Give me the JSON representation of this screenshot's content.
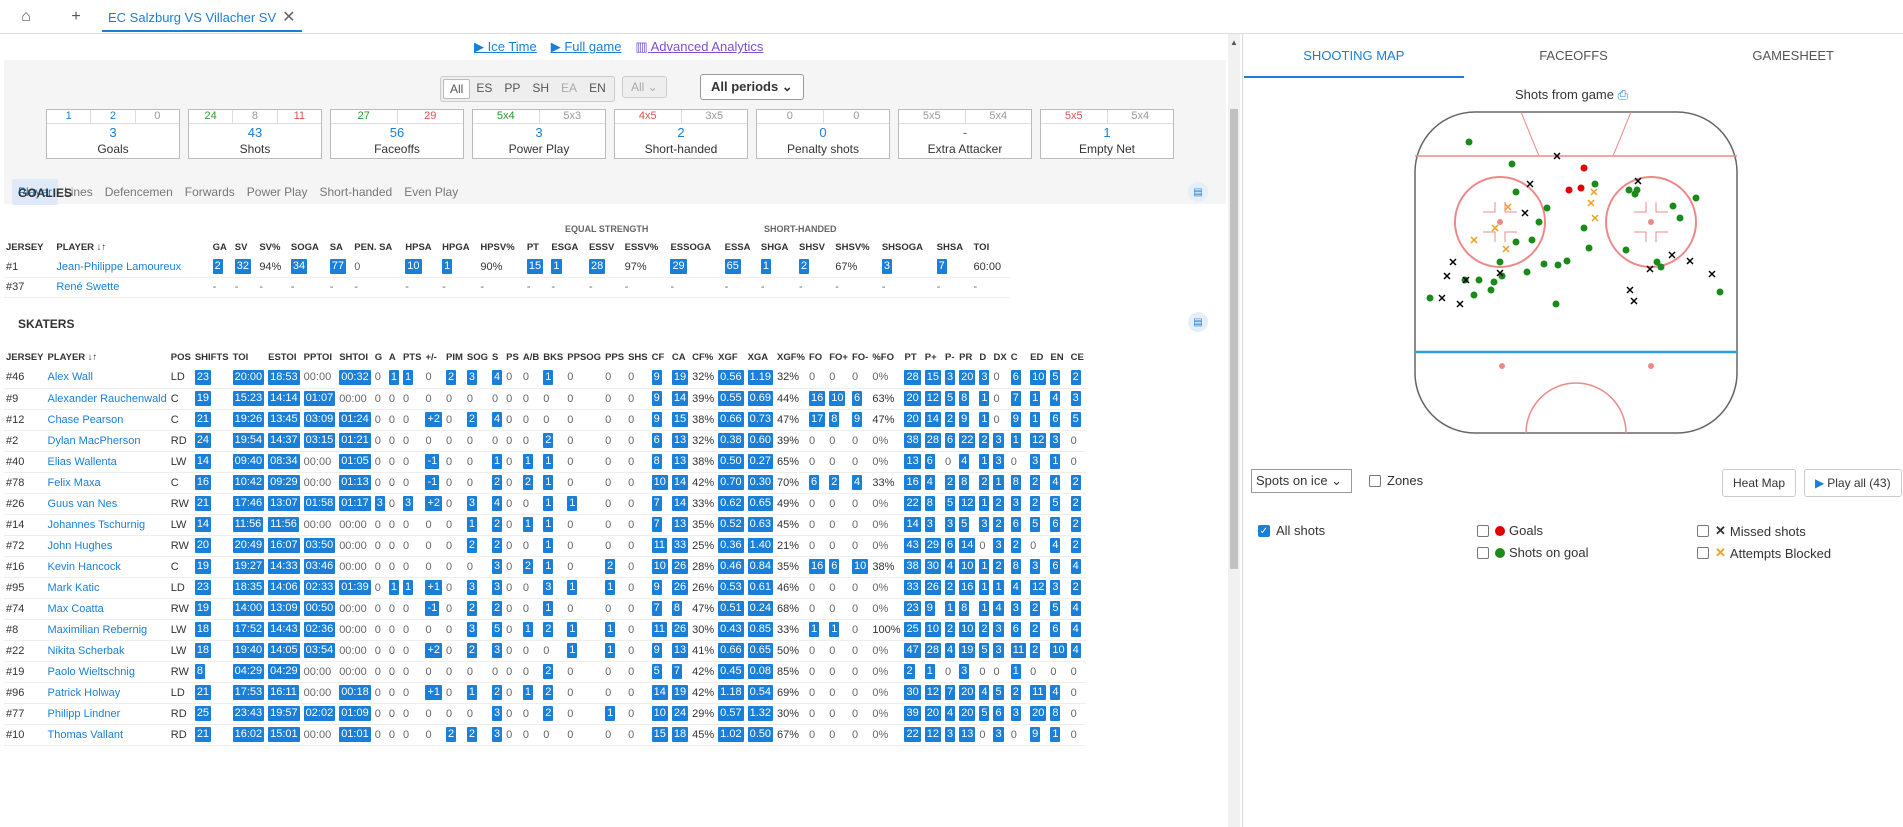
{
  "tabbar": {
    "home_icon": "home-icon",
    "add_icon": "plus-icon",
    "tab_title": "EC Salzburg VS Villacher SV",
    "close": "✕"
  },
  "links": {
    "ice_time": "Ice Time",
    "full_game": "Full game",
    "analytics": "Advanced Analytics"
  },
  "filters": {
    "situations": [
      "All",
      "ES",
      "PP",
      "SH",
      "EA",
      "EN"
    ],
    "all_select": "All",
    "periods": "All periods"
  },
  "stat_boxes": [
    {
      "top": [
        "1",
        "2",
        "0"
      ],
      "top_colors": [
        "blue",
        "blue",
        "gry"
      ],
      "value": "3",
      "label": "Goals"
    },
    {
      "top": [
        "24",
        "8",
        "11"
      ],
      "top_colors": [
        "green",
        "gry",
        "red"
      ],
      "value": "43",
      "label": "Shots"
    },
    {
      "top": [
        "27",
        "29"
      ],
      "top_colors": [
        "green",
        "red"
      ],
      "value": "56",
      "label": "Faceoffs"
    },
    {
      "top": [
        "5x4",
        "5x3"
      ],
      "top_colors": [
        "green",
        "gry"
      ],
      "value": "3",
      "label": "Power Play"
    },
    {
      "top": [
        "4x5",
        "3x5"
      ],
      "top_colors": [
        "red",
        "gry"
      ],
      "value": "2",
      "label": "Short-handed"
    },
    {
      "top": [
        "0",
        "0"
      ],
      "top_colors": [
        "gry",
        "gry"
      ],
      "value": "0",
      "label": "Penalty shots"
    },
    {
      "top": [
        "5x5",
        "5x4"
      ],
      "top_colors": [
        "gry",
        "gry"
      ],
      "value": "-",
      "label": "Extra Attacker"
    },
    {
      "top": [
        "5x5",
        "5x4"
      ],
      "top_colors": [
        "red",
        "gry"
      ],
      "value": "1",
      "label": "Empty Net"
    }
  ],
  "subtabs": [
    "Player",
    "Lines",
    "Defencemen",
    "Forwards",
    "Power Play",
    "Short-handed",
    "Even Play"
  ],
  "goalies": {
    "title": "GOALIES",
    "eq_label": "EQUAL STRENGTH",
    "sh_label": "SHORT-HANDED",
    "headers": [
      "JERSEY",
      "PLAYER ↓↑",
      "GA",
      "SV",
      "SV%",
      "SOGA",
      "SA",
      "PEN. SA",
      "HPSA",
      "HPGA",
      "HPSV%",
      "PT",
      "ESGA",
      "ESSV",
      "ESSV%",
      "ESSOGA",
      "ESSA",
      "SHGA",
      "SHSV",
      "SHSV%",
      "SHSOGA",
      "SHSA",
      "TOI"
    ],
    "rows": [
      [
        "#1",
        "Jean-Philippe Lamoureux",
        "2",
        "32",
        "94%",
        "34",
        "77",
        "0",
        "10",
        "1",
        "90%",
        "15",
        "1",
        "28",
        "97%",
        "29",
        "65",
        "1",
        "2",
        "67%",
        "3",
        "7",
        "60:00"
      ],
      [
        "#37",
        "René Swette",
        "-",
        "-",
        "-",
        "-",
        "-",
        "-",
        "-",
        "-",
        "-",
        "-",
        "-",
        "-",
        "-",
        "-",
        "-",
        "-",
        "-",
        "-",
        "-",
        "-",
        "-"
      ]
    ]
  },
  "skaters": {
    "title": "SKATERS",
    "headers": [
      "JERSEY",
      "PLAYER ↓↑",
      "POS",
      "SHIFTS",
      "TOI",
      "ESTOI",
      "PPTOI",
      "SHTOI",
      "G",
      "A",
      "PTS",
      "+/-",
      "PIM",
      "SOG",
      "S",
      "PS",
      "A/B",
      "BKS",
      "PPSOG",
      "PPS",
      "SHS",
      "CF",
      "CA",
      "CF%",
      "XGF",
      "XGA",
      "XGF%",
      "FO",
      "FO+",
      "FO-",
      "%FO",
      "PT",
      "P+",
      "P-",
      "PR",
      "D",
      "DX",
      "C",
      "ED",
      "EN",
      "CE"
    ],
    "rows": [
      [
        "#46",
        "Alex Wall",
        "LD",
        "23",
        "20:00",
        "18:53",
        "00:00",
        "00:32",
        "0",
        "1",
        "1",
        "0",
        "2",
        "3",
        "4",
        "0",
        "0",
        "1",
        "0",
        "0",
        "0",
        "9",
        "19",
        "32%",
        "0.56",
        "1.19",
        "32%",
        "0",
        "0",
        "0",
        "0%",
        "28",
        "15",
        "3",
        "20",
        "3",
        "0",
        "6",
        "10",
        "5",
        "2"
      ],
      [
        "#9",
        "Alexander Rauchenwald",
        "C",
        "19",
        "15:23",
        "14:14",
        "01:07",
        "00:00",
        "0",
        "0",
        "0",
        "0",
        "0",
        "0",
        "0",
        "0",
        "0",
        "0",
        "0",
        "0",
        "0",
        "9",
        "14",
        "39%",
        "0.55",
        "0.69",
        "44%",
        "16",
        "10",
        "6",
        "63%",
        "20",
        "12",
        "5",
        "8",
        "1",
        "0",
        "7",
        "1",
        "4",
        "3"
      ],
      [
        "#12",
        "Chase Pearson",
        "C",
        "21",
        "19:26",
        "13:45",
        "03:09",
        "01:24",
        "0",
        "0",
        "0",
        "+2",
        "0",
        "2",
        "4",
        "0",
        "0",
        "0",
        "0",
        "0",
        "0",
        "9",
        "15",
        "38%",
        "0.66",
        "0.73",
        "47%",
        "17",
        "8",
        "9",
        "47%",
        "20",
        "14",
        "2",
        "9",
        "1",
        "0",
        "9",
        "1",
        "6",
        "5"
      ],
      [
        "#2",
        "Dylan MacPherson",
        "RD",
        "24",
        "19:54",
        "14:37",
        "03:15",
        "01:21",
        "0",
        "0",
        "0",
        "0",
        "0",
        "0",
        "0",
        "0",
        "0",
        "2",
        "0",
        "0",
        "0",
        "6",
        "13",
        "32%",
        "0.38",
        "0.60",
        "39%",
        "0",
        "0",
        "0",
        "0%",
        "38",
        "28",
        "6",
        "22",
        "2",
        "3",
        "1",
        "12",
        "3",
        "0"
      ],
      [
        "#40",
        "Elias Wallenta",
        "LW",
        "14",
        "09:40",
        "08:34",
        "00:00",
        "01:05",
        "0",
        "0",
        "0",
        "-1",
        "0",
        "0",
        "1",
        "0",
        "1",
        "1",
        "0",
        "0",
        "0",
        "8",
        "13",
        "38%",
        "0.50",
        "0.27",
        "65%",
        "0",
        "0",
        "0",
        "0%",
        "13",
        "6",
        "0",
        "4",
        "1",
        "3",
        "0",
        "3",
        "1",
        "0"
      ],
      [
        "#78",
        "Felix Maxa",
        "C",
        "16",
        "10:42",
        "09:29",
        "00:00",
        "01:13",
        "0",
        "0",
        "0",
        "-1",
        "0",
        "0",
        "2",
        "0",
        "2",
        "1",
        "0",
        "0",
        "0",
        "10",
        "14",
        "42%",
        "0.70",
        "0.30",
        "70%",
        "6",
        "2",
        "4",
        "33%",
        "16",
        "4",
        "2",
        "8",
        "2",
        "1",
        "8",
        "2",
        "4",
        "2"
      ],
      [
        "#26",
        "Guus van Nes",
        "RW",
        "21",
        "17:46",
        "13:07",
        "01:58",
        "01:17",
        "3",
        "0",
        "3",
        "+2",
        "0",
        "3",
        "4",
        "0",
        "0",
        "1",
        "1",
        "0",
        "0",
        "7",
        "14",
        "33%",
        "0.62",
        "0.65",
        "49%",
        "0",
        "0",
        "0",
        "0%",
        "22",
        "8",
        "5",
        "12",
        "1",
        "2",
        "3",
        "2",
        "5",
        "2"
      ],
      [
        "#14",
        "Johannes Tschurnig",
        "LW",
        "14",
        "11:56",
        "11:56",
        "00:00",
        "00:00",
        "0",
        "0",
        "0",
        "0",
        "0",
        "1",
        "2",
        "0",
        "1",
        "1",
        "0",
        "0",
        "0",
        "7",
        "13",
        "35%",
        "0.52",
        "0.63",
        "45%",
        "0",
        "0",
        "0",
        "0%",
        "14",
        "3",
        "3",
        "5",
        "3",
        "2",
        "6",
        "5",
        "6",
        "2"
      ],
      [
        "#72",
        "John Hughes",
        "RW",
        "20",
        "20:49",
        "16:07",
        "03:50",
        "00:00",
        "0",
        "0",
        "0",
        "0",
        "0",
        "2",
        "2",
        "0",
        "0",
        "1",
        "0",
        "0",
        "0",
        "11",
        "33",
        "25%",
        "0.36",
        "1.40",
        "21%",
        "0",
        "0",
        "0",
        "0%",
        "43",
        "29",
        "6",
        "14",
        "0",
        "3",
        "2",
        "0",
        "4",
        "2"
      ],
      [
        "#16",
        "Kevin Hancock",
        "C",
        "19",
        "19:27",
        "14:33",
        "03:46",
        "00:00",
        "0",
        "0",
        "0",
        "0",
        "0",
        "0",
        "3",
        "0",
        "2",
        "1",
        "0",
        "2",
        "0",
        "10",
        "26",
        "28%",
        "0.46",
        "0.84",
        "35%",
        "16",
        "6",
        "10",
        "38%",
        "38",
        "30",
        "4",
        "10",
        "1",
        "2",
        "8",
        "3",
        "6",
        "4"
      ],
      [
        "#95",
        "Mark Katic",
        "LD",
        "23",
        "18:35",
        "14:06",
        "02:33",
        "01:39",
        "0",
        "1",
        "1",
        "+1",
        "0",
        "3",
        "3",
        "0",
        "0",
        "3",
        "1",
        "1",
        "0",
        "9",
        "26",
        "26%",
        "0.53",
        "0.61",
        "46%",
        "0",
        "0",
        "0",
        "0%",
        "33",
        "26",
        "2",
        "16",
        "1",
        "1",
        "4",
        "12",
        "3",
        "2"
      ],
      [
        "#74",
        "Max Coatta",
        "RW",
        "19",
        "14:00",
        "13:09",
        "00:50",
        "00:00",
        "0",
        "0",
        "0",
        "-1",
        "0",
        "2",
        "2",
        "0",
        "0",
        "1",
        "0",
        "0",
        "0",
        "7",
        "8",
        "47%",
        "0.51",
        "0.24",
        "68%",
        "0",
        "0",
        "0",
        "0%",
        "23",
        "9",
        "1",
        "8",
        "1",
        "4",
        "3",
        "2",
        "5",
        "4"
      ],
      [
        "#8",
        "Maximilian Rebernig",
        "LW",
        "18",
        "17:52",
        "14:43",
        "02:36",
        "00:00",
        "0",
        "0",
        "0",
        "0",
        "0",
        "3",
        "5",
        "0",
        "1",
        "2",
        "1",
        "1",
        "0",
        "11",
        "26",
        "30%",
        "0.43",
        "0.85",
        "33%",
        "1",
        "1",
        "0",
        "100%",
        "25",
        "10",
        "2",
        "10",
        "2",
        "3",
        "6",
        "2",
        "6",
        "4"
      ],
      [
        "#22",
        "Nikita Scherbak",
        "LW",
        "18",
        "19:40",
        "14:05",
        "03:54",
        "00:00",
        "0",
        "0",
        "0",
        "+2",
        "0",
        "2",
        "3",
        "0",
        "0",
        "0",
        "1",
        "1",
        "0",
        "9",
        "13",
        "41%",
        "0.66",
        "0.65",
        "50%",
        "0",
        "0",
        "0",
        "0%",
        "47",
        "28",
        "4",
        "19",
        "5",
        "3",
        "11",
        "2",
        "10",
        "4"
      ],
      [
        "#19",
        "Paolo Wieltschnig",
        "RW",
        "8",
        "04:29",
        "04:29",
        "00:00",
        "00:00",
        "0",
        "0",
        "0",
        "0",
        "0",
        "0",
        "0",
        "0",
        "0",
        "2",
        "0",
        "0",
        "0",
        "5",
        "7",
        "42%",
        "0.45",
        "0.08",
        "85%",
        "0",
        "0",
        "0",
        "0%",
        "2",
        "1",
        "0",
        "3",
        "0",
        "0",
        "1",
        "0",
        "0",
        "0"
      ],
      [
        "#96",
        "Patrick Holway",
        "LD",
        "21",
        "17:53",
        "16:11",
        "00:00",
        "00:18",
        "0",
        "0",
        "0",
        "+1",
        "0",
        "1",
        "2",
        "0",
        "1",
        "2",
        "0",
        "0",
        "0",
        "14",
        "19",
        "42%",
        "1.18",
        "0.54",
        "69%",
        "0",
        "0",
        "0",
        "0%",
        "30",
        "12",
        "7",
        "20",
        "4",
        "5",
        "2",
        "11",
        "4",
        "0"
      ],
      [
        "#77",
        "Philipp Lindner",
        "RD",
        "25",
        "23:43",
        "19:57",
        "02:02",
        "01:09",
        "0",
        "0",
        "0",
        "0",
        "0",
        "0",
        "3",
        "0",
        "0",
        "2",
        "0",
        "1",
        "0",
        "10",
        "24",
        "29%",
        "0.57",
        "1.32",
        "30%",
        "0",
        "0",
        "0",
        "0%",
        "39",
        "20",
        "4",
        "20",
        "5",
        "6",
        "3",
        "20",
        "8",
        "0"
      ],
      [
        "#10",
        "Thomas Vallant",
        "RD",
        "21",
        "16:02",
        "15:01",
        "00:00",
        "01:01",
        "0",
        "0",
        "0",
        "0",
        "2",
        "2",
        "3",
        "0",
        "0",
        "0",
        "0",
        "0",
        "0",
        "15",
        "18",
        "45%",
        "1.02",
        "0.50",
        "67%",
        "0",
        "0",
        "0",
        "0%",
        "22",
        "12",
        "3",
        "13",
        "0",
        "3",
        "0",
        "9",
        "1",
        "0"
      ]
    ]
  },
  "right": {
    "tabs": [
      "SHOOTING MAP",
      "FACEOFFS",
      "GAMESHEET"
    ],
    "shots_title": "Shots from game",
    "spots_select": "Spots on ice",
    "zones": "Zones",
    "heatmap": "Heat Map",
    "playall": "Play all (43)",
    "legend": {
      "all": "All shots",
      "goals": "Goals",
      "sog": "Shots on goal",
      "missed": "Missed shots",
      "blocked": "Attempts Blocked"
    },
    "colors": {
      "goal": "#e00000",
      "sog": "#1a8a1a",
      "missed": "#000000",
      "blocked": "#f0a020",
      "rink_red": "#e88",
      "rink_blue": "#2aa0e0"
    }
  }
}
